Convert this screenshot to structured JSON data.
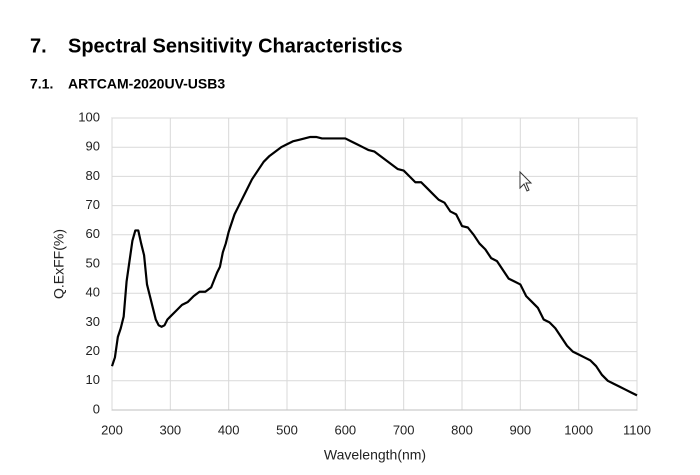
{
  "heading": {
    "number": "7.",
    "title": "Spectral Sensitivity Characteristics"
  },
  "subheading": {
    "number": "7.1.",
    "title": "ARTCAM-2020UV-USB3"
  },
  "chart_data": {
    "type": "line",
    "xlabel": "Wavelength(nm)",
    "ylabel": "Q.ExFF(%)",
    "xlim": [
      200,
      1100
    ],
    "xticks": [
      200,
      300,
      400,
      500,
      600,
      700,
      800,
      900,
      1000,
      1100
    ],
    "ylim": [
      0,
      100
    ],
    "yticks": [
      0,
      10,
      20,
      30,
      40,
      50,
      60,
      70,
      80,
      90,
      100
    ],
    "grid": true,
    "color": "#000000",
    "x": [
      200,
      205,
      210,
      215,
      220,
      225,
      230,
      235,
      240,
      245,
      250,
      255,
      260,
      265,
      270,
      275,
      280,
      285,
      290,
      295,
      300,
      310,
      320,
      330,
      340,
      350,
      360,
      370,
      380,
      385,
      390,
      395,
      400,
      410,
      420,
      430,
      440,
      450,
      460,
      470,
      480,
      490,
      500,
      510,
      520,
      530,
      540,
      550,
      560,
      570,
      580,
      590,
      600,
      610,
      620,
      630,
      640,
      650,
      660,
      670,
      680,
      690,
      700,
      710,
      720,
      730,
      740,
      750,
      760,
      770,
      780,
      790,
      800,
      810,
      820,
      830,
      840,
      850,
      860,
      870,
      880,
      890,
      900,
      910,
      920,
      930,
      940,
      950,
      960,
      970,
      980,
      990,
      1000,
      1010,
      1020,
      1030,
      1040,
      1050,
      1060,
      1070,
      1080,
      1090,
      1100
    ],
    "values": [
      15,
      18,
      25,
      28,
      32,
      44,
      51,
      58,
      61.5,
      61.5,
      57,
      53,
      43,
      39,
      35,
      31,
      29,
      28.5,
      29,
      31,
      32,
      34,
      36,
      37,
      39,
      40.5,
      40.5,
      42,
      47,
      49,
      54,
      57,
      61,
      67,
      71,
      75,
      79,
      82,
      85,
      87,
      88.5,
      90,
      91,
      92,
      92.5,
      93,
      93.5,
      93.5,
      93,
      93,
      93,
      93,
      93,
      92,
      91,
      90,
      89,
      88.5,
      87,
      85.5,
      84,
      82.5,
      82,
      80,
      78,
      78,
      76,
      74,
      72,
      71,
      68,
      67,
      63,
      62.5,
      60,
      57,
      55,
      52,
      51,
      48,
      45,
      44,
      43,
      39,
      37,
      35,
      31,
      30,
      28,
      25,
      22,
      20,
      19,
      18,
      17,
      15,
      12,
      10,
      9,
      8,
      7,
      6,
      5
    ]
  }
}
